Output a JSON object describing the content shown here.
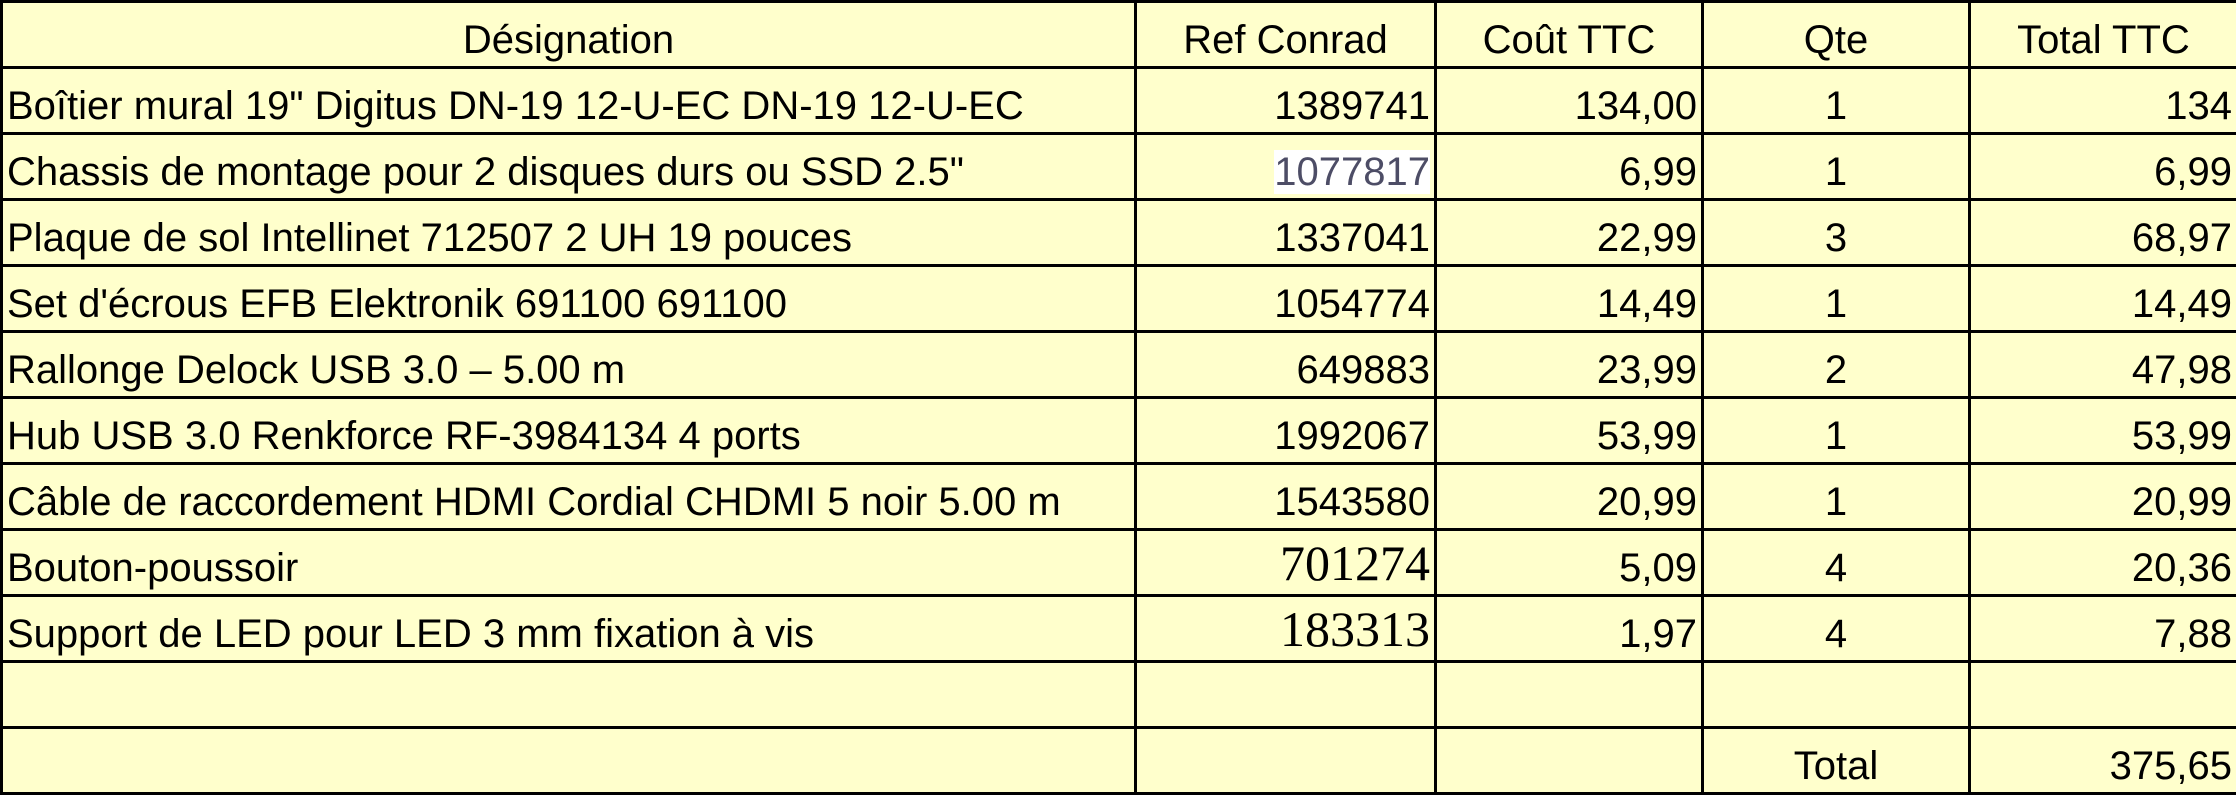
{
  "headers": {
    "designation": "Désignation",
    "ref": "Ref Conrad",
    "cout": "Coût TTC",
    "qte": "Qte",
    "total": "Total TTC"
  },
  "rows": [
    {
      "designation": "Boîtier mural 19\" Digitus DN-19 12-U-EC DN-19 12-U-EC",
      "ref": "1389741",
      "cout": "134,00",
      "qte": "1",
      "total": "134"
    },
    {
      "designation": "Chassis de montage pour 2 disques durs ou SSD 2.5\"",
      "ref": "1077817",
      "cout": "6,99",
      "qte": "1",
      "total": "6,99"
    },
    {
      "designation": "Plaque de sol Intellinet 712507 2 UH 19 pouces",
      "ref": "1337041",
      "cout": "22,99",
      "qte": "3",
      "total": "68,97"
    },
    {
      "designation": "Set d'écrous EFB Elektronik 691100 691100",
      "ref": "1054774",
      "cout": "14,49",
      "qte": "1",
      "total": "14,49"
    },
    {
      "designation": "Rallonge Delock USB 3.0 – 5.00 m",
      "ref": "649883",
      "cout": "23,99",
      "qte": "2",
      "total": "47,98"
    },
    {
      "designation": "Hub USB 3.0 Renkforce RF-3984134 4 ports",
      "ref": "1992067",
      "cout": "53,99",
      "qte": "1",
      "total": "53,99"
    },
    {
      "designation": "Câble de raccordement HDMI Cordial CHDMI 5 noir 5.00 m",
      "ref": "1543580",
      "cout": "20,99",
      "qte": "1",
      "total": "20,99"
    },
    {
      "designation": "Bouton-poussoir",
      "ref": "701274",
      "cout": "5,09",
      "qte": "4",
      "total": "20,36"
    },
    {
      "designation": "Support de LED pour LED 3 mm fixation à vis",
      "ref": "183313",
      "cout": "1,97",
      "qte": "4",
      "total": "7,88"
    }
  ],
  "footer": {
    "total_label": "Total",
    "total_value": "375,65"
  }
}
